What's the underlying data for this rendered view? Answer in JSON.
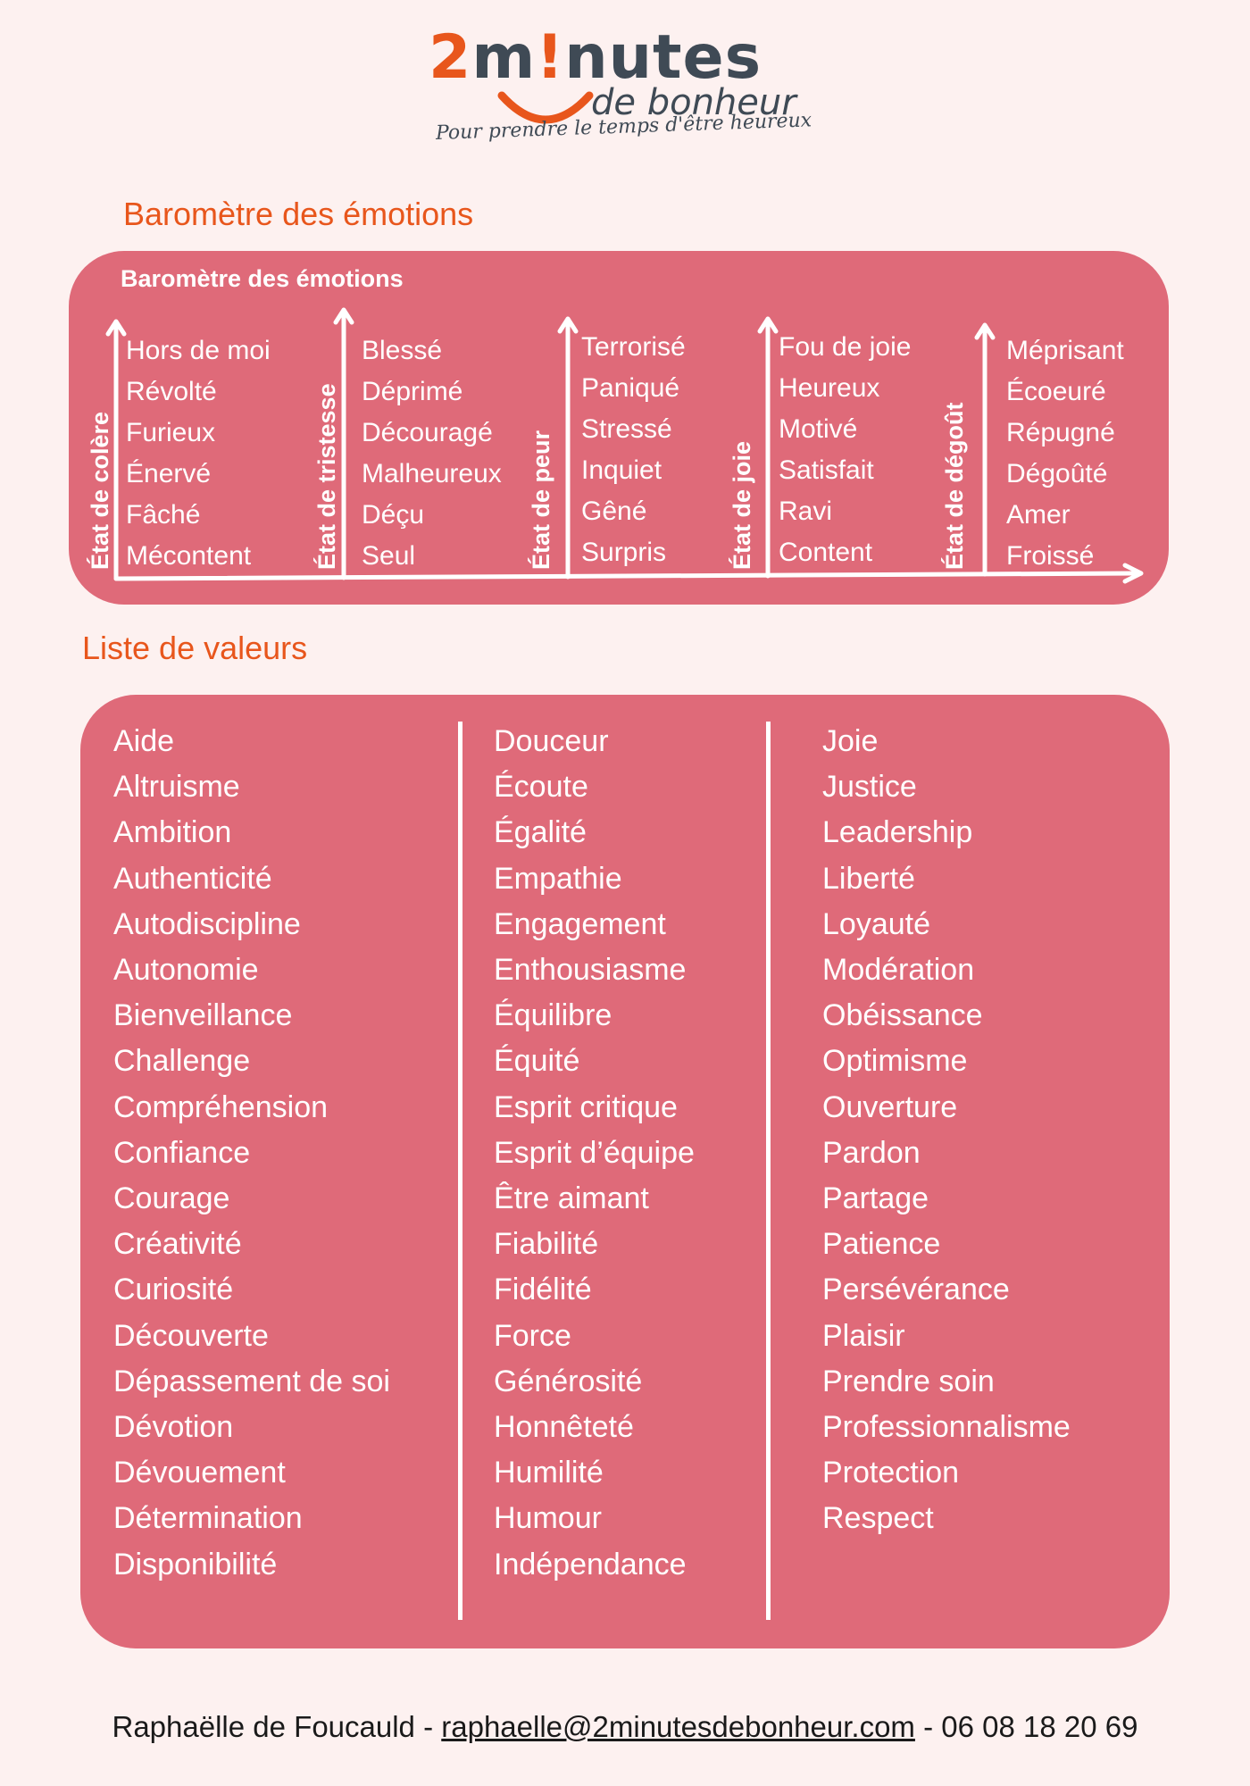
{
  "brand": {
    "logo_two": "2",
    "logo_m": "m",
    "logo_bang": "!",
    "logo_rest": "nutes",
    "logo_sub": "de bonheur",
    "tagline": "Pour prendre le temps d'être heureux",
    "accent_color": "#e8561c",
    "text_color": "#3f4a55"
  },
  "barometer": {
    "section_title": "Baromètre des émotions",
    "panel_title": "Baromètre des émotions",
    "panel_color": "#df6a79",
    "states": [
      {
        "label": "État de colère",
        "emotions": [
          "Hors de moi",
          "Révolté",
          "Furieux",
          "Énervé",
          "Fâché",
          "Mécontent"
        ]
      },
      {
        "label": "État de tristesse",
        "emotions": [
          "Blessé",
          "Déprimé",
          "Découragé",
          "Malheureux",
          "Déçu",
          "Seul"
        ]
      },
      {
        "label": "État de peur",
        "emotions": [
          "Terrorisé",
          "Paniqué",
          "Stressé",
          "Inquiet",
          "Gêné",
          "Surpris"
        ]
      },
      {
        "label": "État de joie",
        "emotions": [
          "Fou de joie",
          "Heureux",
          "Motivé",
          "Satisfait",
          "Ravi",
          "Content"
        ]
      },
      {
        "label": "État de dégoût",
        "emotions": [
          "Méprisant",
          "Écoeuré",
          "Répugné",
          "Dégoûté",
          "Amer",
          "Froissé"
        ]
      }
    ]
  },
  "values": {
    "section_title": "Liste de valeurs",
    "columns": [
      [
        "Aide",
        "Altruisme",
        "Ambition",
        "Authenticité",
        "Autodiscipline",
        "Autonomie",
        "Bienveillance",
        "Challenge",
        "Compréhension",
        "Confiance",
        "Courage",
        "Créativité",
        "Curiosité",
        "Découverte",
        "Dépassement de soi",
        "Dévotion",
        "Dévouement",
        "Détermination",
        "Disponibilité"
      ],
      [
        "Douceur",
        "Écoute",
        "Égalité",
        "Empathie",
        "Engagement",
        "Enthousiasme",
        "Équilibre",
        "Équité",
        "Esprit critique",
        "Esprit d’équipe",
        "Être aimant",
        "Fiabilité",
        "Fidélité",
        "Force",
        "Générosité",
        "Honnêteté",
        "Humilité",
        "Humour",
        "Indépendance"
      ],
      [
        "Joie",
        "Justice",
        "Leadership",
        "Liberté",
        "Loyauté",
        "Modération",
        "Obéissance",
        "Optimisme",
        "Ouverture",
        "Pardon",
        "Partage",
        "Patience",
        "Persévérance",
        "Plaisir",
        "Prendre soin",
        "Professionnalisme",
        "Protection",
        "Respect"
      ]
    ]
  },
  "footer": {
    "name": "Raphaëlle de Foucauld",
    "separator": " - ",
    "email": "raphaelle@2minutesdebonheur.com",
    "phone": "06 08 18 20 69"
  }
}
